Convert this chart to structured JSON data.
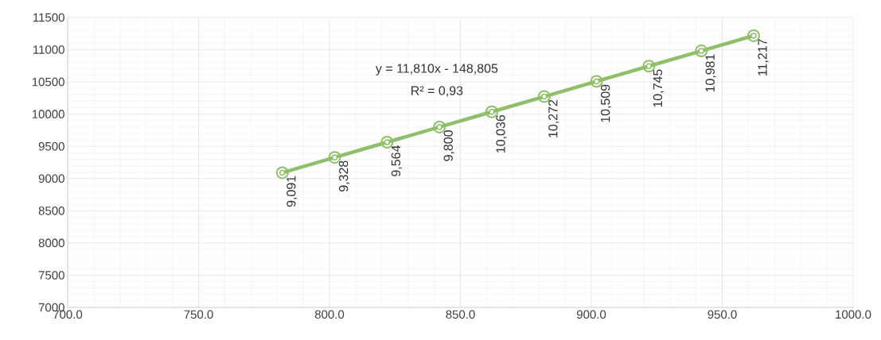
{
  "chart_data": {
    "type": "line",
    "x": [
      782,
      802,
      822,
      842,
      862,
      882,
      902,
      922,
      942,
      962
    ],
    "series": [
      {
        "color": "#8fbf6a",
        "values": [
          9091,
          9328,
          9564,
          9800,
          10036,
          10272,
          10509,
          10745,
          10981,
          11217
        ],
        "value_labels": [
          "9,091",
          "9,328",
          "9,564",
          "9,800",
          "10,036",
          "10,272",
          "10,509",
          "10,745",
          "10,981",
          "11,217"
        ]
      }
    ],
    "xlim": [
      700,
      1000
    ],
    "xticks": [
      {
        "value": 700,
        "label": "700.0"
      },
      {
        "value": 750,
        "label": "750.0"
      },
      {
        "value": 800,
        "label": "800.0"
      },
      {
        "value": 850,
        "label": "850.0"
      },
      {
        "value": 900,
        "label": "900.0"
      },
      {
        "value": 950,
        "label": "950.0"
      },
      {
        "value": 1000,
        "label": "1000.0"
      }
    ],
    "ylim": [
      7000,
      11500
    ],
    "yticks": [
      7000,
      7500,
      8000,
      8500,
      9000,
      9500,
      10000,
      10500,
      11000,
      11500
    ],
    "grid": true,
    "marker": "circle",
    "line_style": "solid",
    "annotations": [
      "y = 11,810x - 148,805",
      "R² = 0,93"
    ]
  }
}
